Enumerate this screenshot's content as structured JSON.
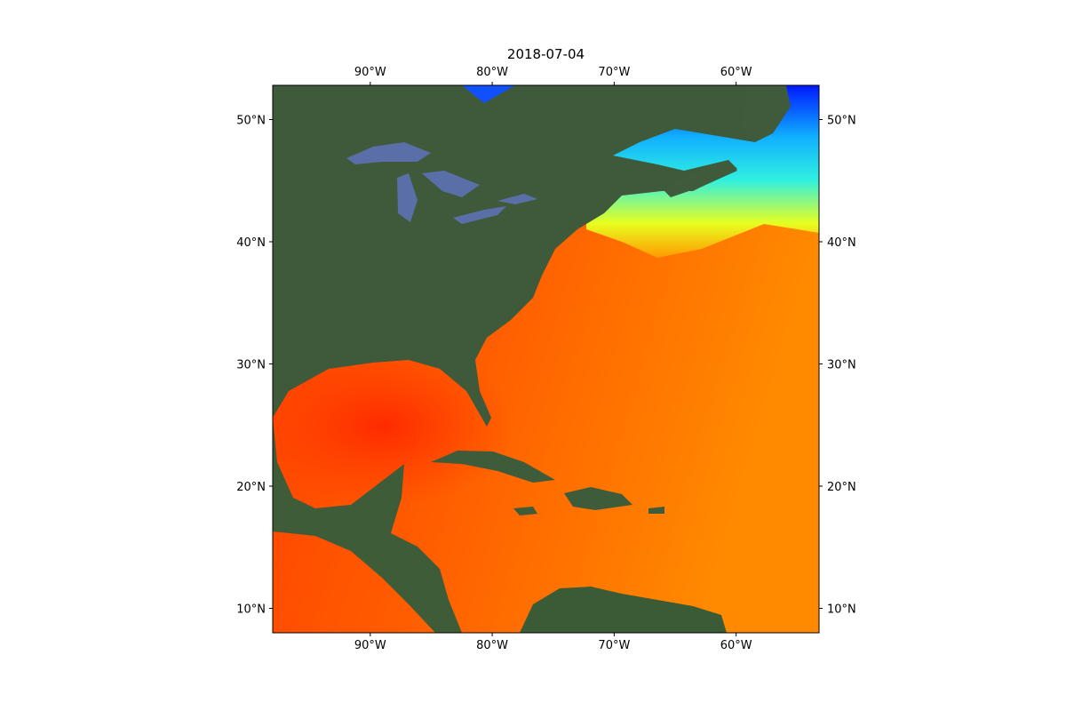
{
  "map": {
    "title": "2018-07-04",
    "xlim": [
      -98,
      -53.2
    ],
    "ylim": [
      8,
      52.8
    ],
    "xticks": [
      {
        "value": -90,
        "label": "90°W"
      },
      {
        "value": -80,
        "label": "80°W"
      },
      {
        "value": -70,
        "label": "70°W"
      },
      {
        "value": -60,
        "label": "60°W"
      }
    ],
    "yticks": [
      {
        "value": 10,
        "label": "10°N"
      },
      {
        "value": 20,
        "label": "20°N"
      },
      {
        "value": 30,
        "label": "30°N"
      },
      {
        "value": 40,
        "label": "40°N"
      },
      {
        "value": 50,
        "label": "50°N"
      }
    ]
  }
}
